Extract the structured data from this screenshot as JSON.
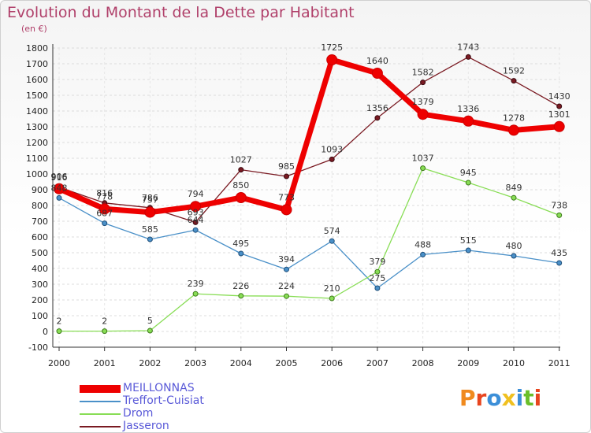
{
  "header": {
    "title": "Evolution du Montant de la Dette par Habitant",
    "subtitle": "(en €)"
  },
  "logo": {
    "text": "Proxiti"
  },
  "chart_data": {
    "type": "line",
    "title": "Evolution du Montant de la Dette par Habitant",
    "ylabel": "(en €)",
    "xlabel": "",
    "x": [
      "2000",
      "2001",
      "2002",
      "2003",
      "2004",
      "2005",
      "2006",
      "2007",
      "2008",
      "2009",
      "2010",
      "2011"
    ],
    "ylim": [
      -100,
      1800
    ],
    "yticks": [
      -100,
      0,
      100,
      200,
      300,
      400,
      500,
      600,
      700,
      800,
      900,
      1000,
      1100,
      1200,
      1300,
      1400,
      1500,
      1600,
      1700,
      1800
    ],
    "grid": true,
    "legend_position": "bottom-left",
    "series": [
      {
        "name": "MEILLONNAS",
        "color": "#ee0000",
        "values": [
          906,
          778,
          757,
          794,
          850,
          773,
          1725,
          1640,
          1379,
          1336,
          1278,
          1301
        ]
      },
      {
        "name": "Treffort-Cuisiat",
        "color": "#4a90c8",
        "values": [
          848,
          687,
          585,
          644,
          495,
          394,
          574,
          275,
          488,
          515,
          480,
          435
        ]
      },
      {
        "name": "Drom",
        "color": "#88dd55",
        "values": [
          2,
          2,
          5,
          239,
          226,
          224,
          210,
          379,
          1037,
          945,
          849,
          738
        ]
      },
      {
        "name": "Jasseron",
        "color": "#7a1a22",
        "values": [
          916,
          816,
          786,
          693,
          1027,
          985,
          1093,
          1356,
          1582,
          1743,
          1592,
          1430
        ]
      }
    ]
  }
}
